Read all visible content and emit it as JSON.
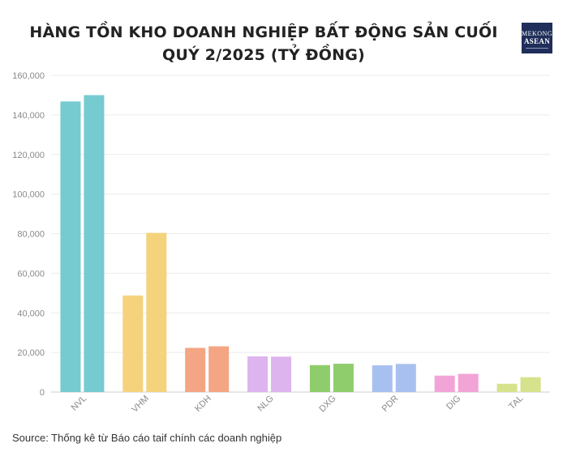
{
  "header": {
    "title": "HÀNG TỒN KHO DOANH NGHIỆP BẤT ĐỘNG SẢN CUỐI QUÝ 2/2025 (TỶ ĐỒNG)",
    "logo_line1": "MEKONG",
    "logo_line2": "ASEAN"
  },
  "footer": {
    "source": "Source: Thống kê từ Báo cáo taif chính các doanh nghiệp"
  },
  "chart_data": {
    "type": "bar",
    "title": "HÀNG TỒN KHO DOANH NGHIỆP BẤT ĐỘNG SẢN CUỐI QUÝ 2/2025 (TỶ ĐỒNG)",
    "xlabel": "",
    "ylabel": "",
    "ylim": [
      0,
      160000
    ],
    "yticks": [
      0,
      20000,
      40000,
      60000,
      80000,
      100000,
      120000,
      140000,
      160000
    ],
    "ytick_labels": [
      "0",
      "20,000",
      "40,000",
      "60,000",
      "80,000",
      "100,000",
      "120,000",
      "140,000",
      "160,000"
    ],
    "grid": true,
    "legend": "none",
    "categories": [
      "NVL",
      "VHM",
      "KDH",
      "NLG",
      "DXG",
      "PDR",
      "DIG",
      "TAL"
    ],
    "series": [
      {
        "values": [
          146800,
          48800,
          22300,
          18000,
          13600,
          13500,
          8300,
          4200
        ]
      },
      {
        "values": [
          150000,
          80400,
          23100,
          17900,
          14300,
          14200,
          9200,
          7500
        ]
      }
    ],
    "colors": [
      "#76cbd1",
      "#f5d27c",
      "#f4a583",
      "#ddb4ee",
      "#8fcd6c",
      "#a8c0ef",
      "#f2a4d6",
      "#d6e28c"
    ]
  }
}
